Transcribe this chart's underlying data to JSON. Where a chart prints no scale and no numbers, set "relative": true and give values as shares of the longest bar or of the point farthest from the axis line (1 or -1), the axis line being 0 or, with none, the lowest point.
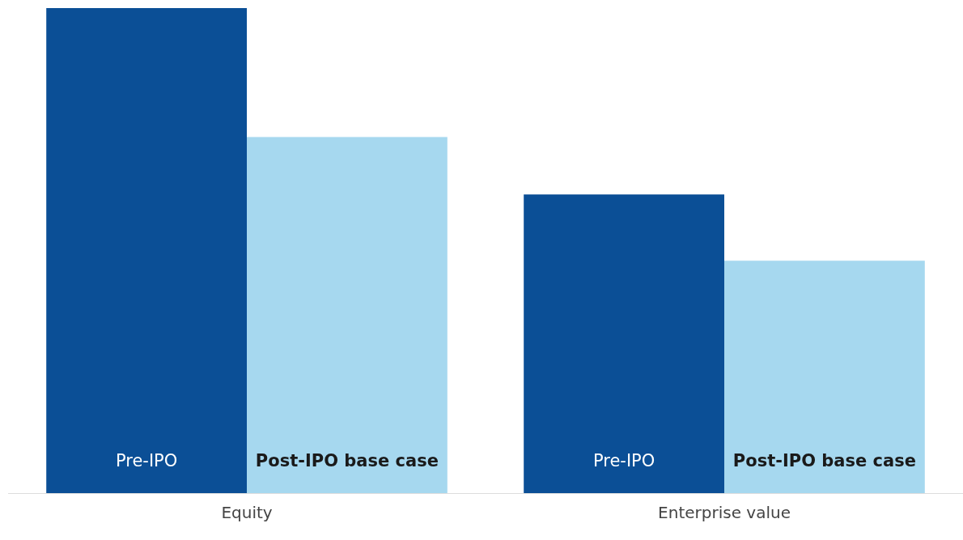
{
  "chart_data": {
    "type": "bar",
    "relative": true,
    "categories": [
      "Equity",
      "Enterprise value"
    ],
    "series": [
      {
        "name": "Pre-IPO",
        "color": "#0b4f96",
        "values": [
          1,
          0.616
        ]
      },
      {
        "name": "Post-IPO base case",
        "color": "#a6d8ef",
        "values": [
          0.734,
          0.479
        ]
      }
    ],
    "grid": false,
    "legend": false
  }
}
